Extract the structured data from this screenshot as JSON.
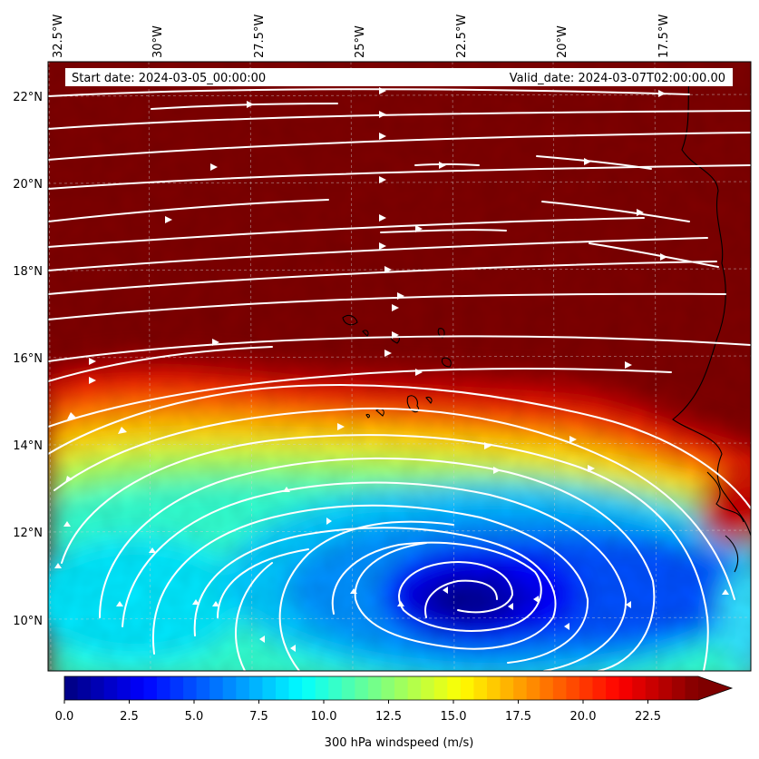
{
  "map": {
    "header": {
      "start_label": "Start date: 2024-03-05_00:00:00",
      "valid_label": "Valid_date: 2024-03-07T02:00:00.00"
    },
    "lon_labels": [
      "32.5°W",
      "30°W",
      "27.5°W",
      "25°W",
      "22.5°W",
      "20°W",
      "17.5°W"
    ],
    "lat_labels": [
      "22°N",
      "20°N",
      "18°N",
      "16°N",
      "14°N",
      "12°N",
      "10°N"
    ],
    "colorbar": {
      "tick_labels": [
        "0.0",
        "2.5",
        "5.0",
        "7.5",
        "10.0",
        "12.5",
        "15.0",
        "17.5",
        "20.0",
        "22.5"
      ],
      "label": "300 hPa windspeed (m/s)",
      "vmin": 0,
      "vmax": 24,
      "step": 0.5,
      "extend": "max"
    },
    "colors": {
      "jet": [
        "#00007f",
        "#0000ff",
        "#007fff",
        "#00ffff",
        "#7fff7f",
        "#ffff00",
        "#ff7f00",
        "#ff0000",
        "#7f0000"
      ],
      "streamline": "#ffffff",
      "coastline": "#000000",
      "gridline": "#d0d0d0"
    }
  }
}
